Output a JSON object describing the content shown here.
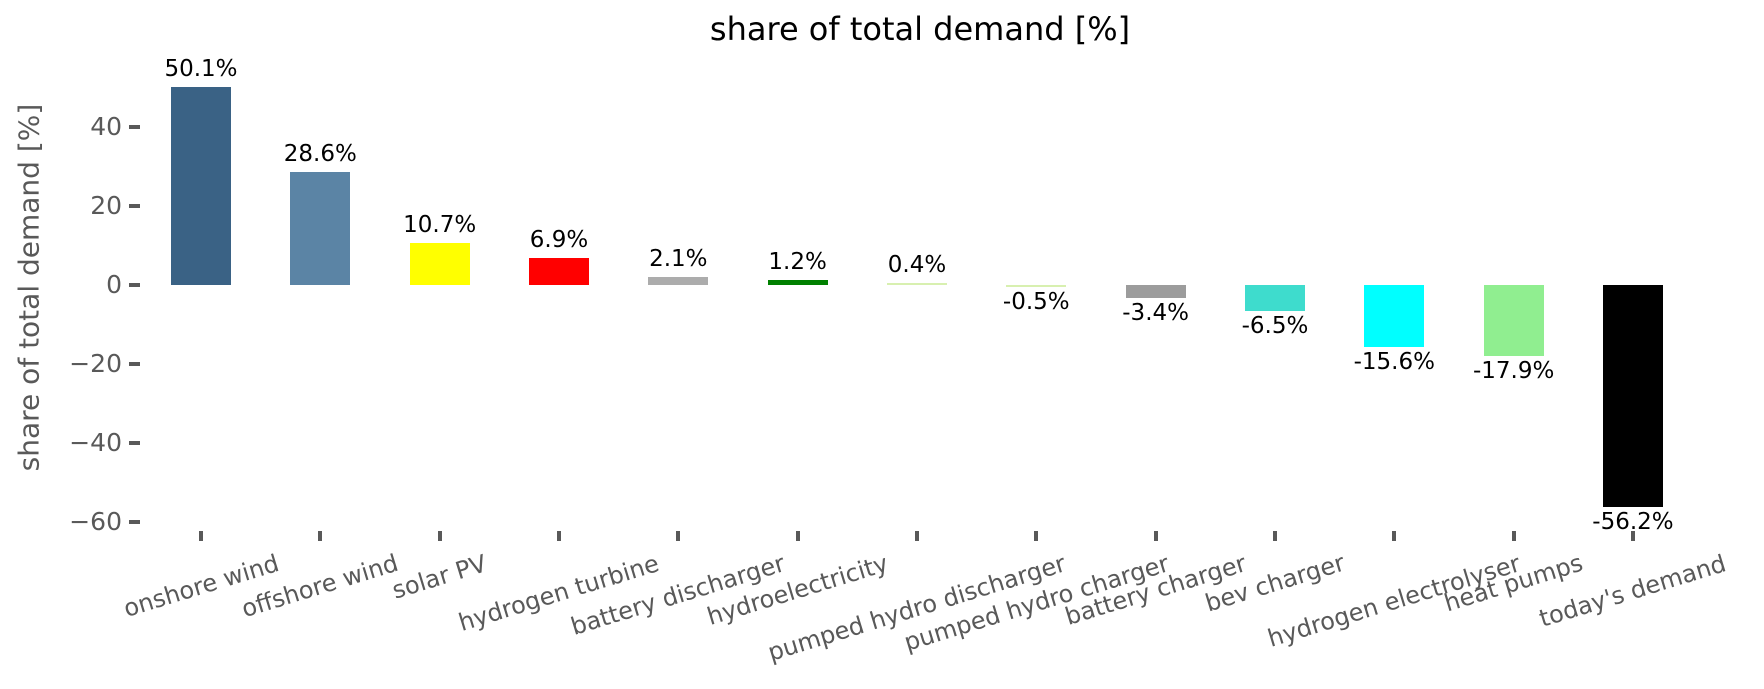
{
  "chart_data": {
    "type": "bar",
    "title": "share of total demand [%]",
    "xlabel": "",
    "ylabel": "share of total demand [%]",
    "categories": [
      "onshore wind",
      "offshore wind",
      "solar PV",
      "hydrogen turbine",
      "battery discharger",
      "hydroelectricity",
      "pumped hydro discharger",
      "pumped hydro charger",
      "battery charger",
      "bev charger",
      "hydrogen electrolyser",
      "heat pumps",
      "today's demand"
    ],
    "values": [
      50.1,
      28.6,
      10.7,
      6.9,
      2.1,
      1.2,
      0.4,
      -0.5,
      -3.4,
      -6.5,
      -15.6,
      -17.9,
      -56.2
    ],
    "bar_labels": [
      "50.1%",
      "28.6%",
      "10.7%",
      "6.9%",
      "2.1%",
      "1.2%",
      "0.4%",
      "-0.5%",
      "-3.4%",
      "-6.5%",
      "-15.6%",
      "-17.9%",
      "-56.2%"
    ],
    "colors": [
      "#3a6285",
      "#5b84a5",
      "#ffff00",
      "#ff0000",
      "#acacac",
      "#008000",
      "#d8f0b0",
      "#d8f0b0",
      "#9c9c9c",
      "#3edccd",
      "#00ffff",
      "#90ee90",
      "#000000"
    ],
    "yticks": [
      40,
      20,
      0,
      -20,
      -40,
      -60
    ],
    "ylim": [
      -63,
      55
    ],
    "grid": false,
    "legend": "none",
    "xtick_rotation_deg": 17,
    "axis_text_color": "#595959",
    "value_label_color": "#000000"
  }
}
